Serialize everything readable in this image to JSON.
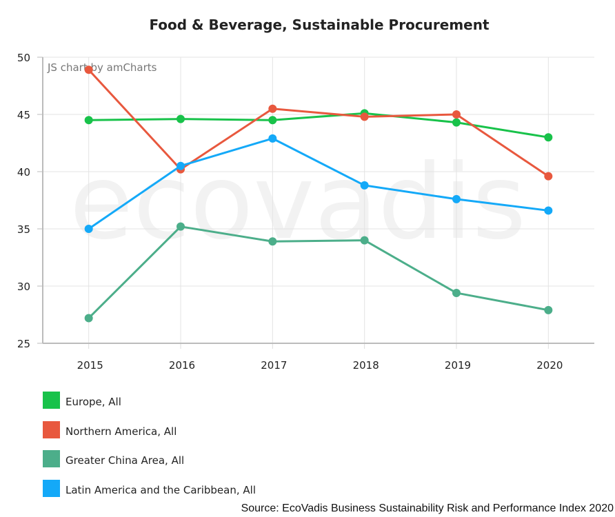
{
  "title": "Food & Beverage, Sustainable Procurement",
  "credit": "JS chart by amCharts",
  "watermark": "ecovadis",
  "source": "Source: EcoVadis Business Sustainability Risk and Performance Index 2020",
  "chart_data": {
    "type": "line",
    "title": "Food & Beverage, Sustainable Procurement",
    "xlabel": "",
    "ylabel": "",
    "x": [
      "2015",
      "2016",
      "2017",
      "2018",
      "2019",
      "2020"
    ],
    "ylim": [
      25,
      50
    ],
    "yticks": [
      25,
      30,
      35,
      40,
      45,
      50
    ],
    "grid": true,
    "legend_position": "bottom-left",
    "series": [
      {
        "name": "Europe, All",
        "color": "#18c24a",
        "values": [
          44.5,
          44.6,
          44.5,
          45.1,
          44.3,
          43.0
        ]
      },
      {
        "name": "Northern America, All",
        "color": "#e8583e",
        "values": [
          48.9,
          40.2,
          45.5,
          44.8,
          45.0,
          39.6
        ]
      },
      {
        "name": "Greater China Area, All",
        "color": "#4cae8a",
        "values": [
          27.2,
          35.2,
          33.9,
          34.0,
          29.4,
          27.9
        ]
      },
      {
        "name": "Latin America and the Caribbean, All",
        "color": "#14a9f8",
        "values": [
          35.0,
          40.5,
          42.9,
          38.8,
          37.6,
          36.6
        ]
      }
    ]
  }
}
